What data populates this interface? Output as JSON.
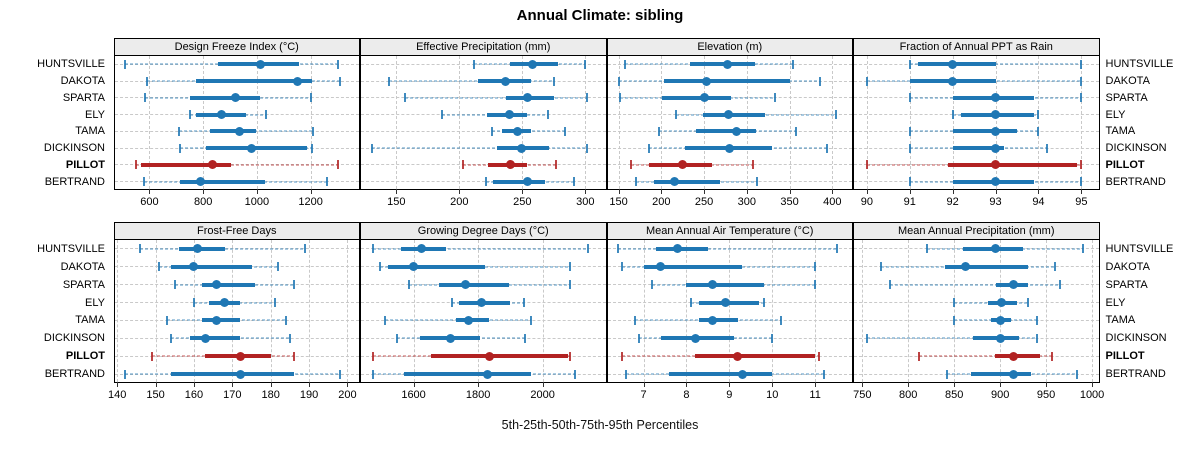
{
  "title": "Annual Climate: sibling",
  "caption": "5th-25th-50th-75th-95th Percentiles",
  "colors": {
    "series_normal": "#1f77b4",
    "series_highlight": "#b22222",
    "strip_bg": "#ececec",
    "grid": "#c9c9c9",
    "panel_border": "#000000",
    "tick": "#333333"
  },
  "chart_data": {
    "type": "scatter",
    "mark": "percentile-interval-dotplot",
    "percentile_labels": [
      "5th",
      "25th",
      "50th",
      "75th",
      "95th"
    ],
    "stations": [
      "HUNTSVILLE",
      "DAKOTA",
      "SPARTA",
      "ELY",
      "TAMA",
      "DICKINSON",
      "PILLOT",
      "BERTRAND"
    ],
    "highlight_station": "PILLOT",
    "legend_position": "none",
    "grid": "dashed",
    "layout_hint": "2 rows x 4 columns trellis; station labels on both left and right sides; x-axis labels below each row of panels",
    "panels": [
      {
        "title": "Design Freeze Index (°C)",
        "xlim": [
          470,
          1380
        ],
        "ticks": [
          600,
          800,
          1000,
          1200
        ],
        "values": [
          [
            510,
            855,
            1015,
            1155,
            1300
          ],
          [
            590,
            775,
            1150,
            1205,
            1310
          ],
          [
            585,
            750,
            920,
            1010,
            1200
          ],
          [
            750,
            775,
            870,
            960,
            1035
          ],
          [
            710,
            825,
            935,
            995,
            1210
          ],
          [
            715,
            810,
            980,
            1185,
            1205
          ],
          [
            550,
            570,
            835,
            905,
            1300
          ],
          [
            580,
            715,
            790,
            1030,
            1260
          ]
        ]
      },
      {
        "title": "Effective Precipitation (mm)",
        "xlim": [
          122,
          316
        ],
        "ticks": [
          150,
          200,
          250,
          300
        ],
        "values": [
          [
            212,
            240,
            258,
            278,
            300
          ],
          [
            144,
            215,
            237,
            257,
            275
          ],
          [
            157,
            237,
            254,
            275,
            301
          ],
          [
            186,
            222,
            240,
            254,
            270
          ],
          [
            226,
            234,
            246,
            257,
            284
          ],
          [
            131,
            230,
            249,
            271,
            301
          ],
          [
            203,
            223,
            241,
            254,
            277
          ],
          [
            221,
            227,
            254,
            268,
            291
          ]
        ]
      },
      {
        "title": "Elevation (m)",
        "xlim": [
          137,
          423
        ],
        "ticks": [
          150,
          200,
          250,
          300,
          350,
          400
        ],
        "values": [
          [
            157,
            234,
            277,
            309,
            354
          ],
          [
            151,
            203,
            253,
            350,
            385
          ],
          [
            152,
            201,
            250,
            281,
            333
          ],
          [
            217,
            249,
            279,
            321,
            404
          ],
          [
            197,
            240,
            288,
            311,
            357
          ],
          [
            185,
            228,
            280,
            329,
            394
          ],
          [
            165,
            185,
            225,
            259,
            307
          ],
          [
            170,
            191,
            215,
            269,
            312
          ]
        ]
      },
      {
        "title": "Fraction of Annual PPT as Rain",
        "xlim": [
          89.7,
          95.4
        ],
        "ticks": [
          90,
          91,
          92,
          93,
          94,
          95
        ],
        "values": [
          [
            91.0,
            91.2,
            92.0,
            93.0,
            95.0
          ],
          [
            90.0,
            91.0,
            92.0,
            93.0,
            95.0
          ],
          [
            91.0,
            92.0,
            93.0,
            93.9,
            95.0
          ],
          [
            92.0,
            92.2,
            93.0,
            93.9,
            94.0
          ],
          [
            91.0,
            92.0,
            93.0,
            93.5,
            94.0
          ],
          [
            91.0,
            92.0,
            93.0,
            93.2,
            94.2
          ],
          [
            90.0,
            91.9,
            93.0,
            94.9,
            95.0
          ],
          [
            91.0,
            92.0,
            93.0,
            93.9,
            95.0
          ]
        ]
      },
      {
        "title": "Frost-Free Days",
        "xlim": [
          139.3,
          203
        ],
        "ticks": [
          140,
          150,
          160,
          170,
          180,
          190,
          200
        ],
        "values": [
          [
            146,
            156,
            161,
            168,
            189
          ],
          [
            151,
            154,
            160,
            175,
            182
          ],
          [
            155,
            162,
            166,
            176,
            186
          ],
          [
            160,
            164,
            168,
            172,
            181
          ],
          [
            153,
            162,
            166,
            172,
            184
          ],
          [
            154,
            159,
            163,
            172,
            185
          ],
          [
            149,
            163,
            172,
            180,
            186
          ],
          [
            142,
            154,
            172,
            186,
            198
          ]
        ]
      },
      {
        "title": "Growing Degree Days (°C)",
        "xlim": [
          1437,
          2195
        ],
        "ticks": [
          1600,
          1800,
          2000
        ],
        "values": [
          [
            1475,
            1560,
            1625,
            1700,
            2140
          ],
          [
            1495,
            1520,
            1600,
            1820,
            2085
          ],
          [
            1585,
            1680,
            1760,
            1895,
            2085
          ],
          [
            1720,
            1740,
            1810,
            1900,
            1942
          ],
          [
            1510,
            1730,
            1770,
            1835,
            1965
          ],
          [
            1550,
            1620,
            1715,
            1805,
            1945
          ],
          [
            1475,
            1655,
            1835,
            2080,
            2085
          ],
          [
            1475,
            1570,
            1830,
            1965,
            2100
          ]
        ]
      },
      {
        "title": "Mean Annual Air Temperature (°C)",
        "xlim": [
          6.16,
          11.86
        ],
        "ticks": [
          7,
          8,
          9,
          10,
          11
        ],
        "values": [
          [
            6.4,
            7.3,
            7.8,
            8.5,
            11.5
          ],
          [
            6.5,
            7.0,
            7.4,
            9.3,
            11.0
          ],
          [
            7.2,
            8.0,
            8.6,
            9.8,
            11.0
          ],
          [
            8.1,
            8.3,
            8.9,
            9.7,
            9.8
          ],
          [
            6.8,
            8.3,
            8.6,
            9.2,
            10.2
          ],
          [
            6.9,
            7.4,
            8.2,
            9.1,
            10.0
          ],
          [
            6.5,
            8.2,
            9.2,
            11.0,
            11.1
          ],
          [
            6.6,
            7.6,
            9.3,
            10.0,
            11.2
          ]
        ]
      },
      {
        "title": "Mean Annual Precipitation (mm)",
        "xlim": [
          741,
          1007
        ],
        "ticks": [
          750,
          800,
          850,
          900,
          950,
          1000
        ],
        "values": [
          [
            820,
            860,
            895,
            925,
            990
          ],
          [
            770,
            840,
            862,
            930,
            960
          ],
          [
            780,
            895,
            915,
            930,
            965
          ],
          [
            850,
            887,
            902,
            918,
            930
          ],
          [
            850,
            890,
            900,
            912,
            940
          ],
          [
            755,
            870,
            900,
            920,
            940
          ],
          [
            812,
            894,
            914,
            943,
            956
          ],
          [
            842,
            868,
            915,
            934,
            984
          ]
        ]
      }
    ]
  }
}
